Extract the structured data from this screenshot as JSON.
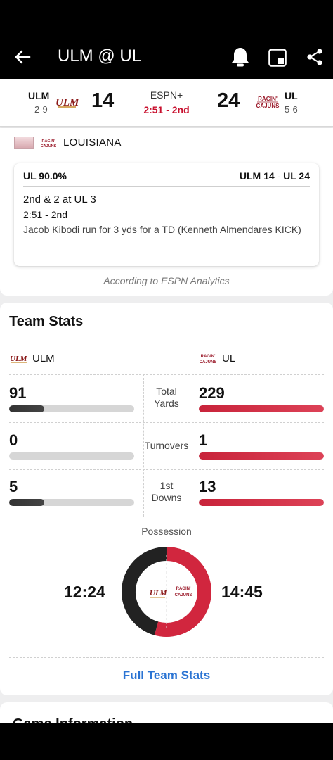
{
  "header": {
    "title": "ULM @ UL",
    "icons": [
      "back-arrow-icon",
      "bell-icon",
      "picture-in-picture-icon",
      "share-icon"
    ]
  },
  "scoreboard": {
    "away": {
      "abbr": "ULM",
      "record": "2-9",
      "score": "14",
      "logo_text": "ULM"
    },
    "home": {
      "abbr": "UL",
      "record": "5-6",
      "score": "24",
      "logo_text": "RAGIN' CAJUNS"
    },
    "network": "ESPN+",
    "clock": "2:51 - 2nd"
  },
  "win_probability": {
    "team_name": "LOUISIANA",
    "percent_label": "UL 90.0%",
    "score_away": "ULM 14",
    "score_sep": "-",
    "score_home": "UL 24",
    "down_distance": "2nd & 2 at UL 3",
    "time": "2:51 - 2nd",
    "description": "Jacob Kibodi run for 3 yds for a TD (Kenneth Almendares KICK)",
    "source": "According to ESPN Analytics"
  },
  "team_stats": {
    "title": "Team Stats",
    "away_label": "ULM",
    "home_label": "UL",
    "rows": [
      {
        "label": "Total Yards",
        "away": "91",
        "home": "229",
        "away_fill": 0.28,
        "home_fill": 1.0
      },
      {
        "label": "Turnovers",
        "away": "0",
        "home": "1",
        "away_fill": 0.0,
        "home_fill": 1.0
      },
      {
        "label": "1st Downs",
        "away": "5",
        "home": "13",
        "away_fill": 0.28,
        "home_fill": 1.0
      }
    ],
    "possession": {
      "title": "Possession",
      "away_time": "12:24",
      "home_time": "14:45",
      "away_minutes": 12.4,
      "home_minutes": 14.75
    },
    "full_stats_label": "Full Team Stats"
  },
  "game_info": {
    "title": "Game Information"
  },
  "colors": {
    "ul_red": "#d1263e",
    "ulm_dark": "#222222",
    "link_blue": "#2b74d3",
    "clock_red": "#c8102e"
  }
}
